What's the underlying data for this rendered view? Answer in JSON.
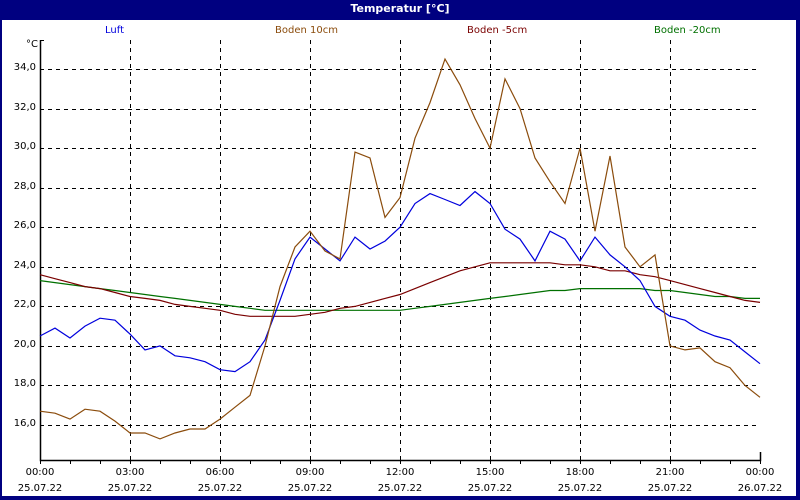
{
  "window": {
    "title": "Temperatur [°C]"
  },
  "colors": {
    "titlebar": "#000080",
    "luft": "#0000dd",
    "boden10": "#8b4c0c",
    "boden5": "#7a0000",
    "boden20": "#007000",
    "grid": "#000000"
  },
  "chart_data": {
    "type": "line",
    "title": "Temperatur [°C]",
    "ylabel": "°C",
    "xlabel": "",
    "ylim": [
      14.3,
      35.5
    ],
    "yticks": [
      16,
      18,
      20,
      22,
      24,
      26,
      28,
      30,
      32,
      34
    ],
    "ytick_labels": [
      "16,0",
      "18,0",
      "20,0",
      "22,0",
      "24,0",
      "26,0",
      "28,0",
      "30,0",
      "32,0",
      "34,0"
    ],
    "xlim_hours": [
      0,
      24
    ],
    "xticks": [
      {
        "time": "00:00",
        "date": "25.07.22"
      },
      {
        "time": "03:00",
        "date": "25.07.22"
      },
      {
        "time": "06:00",
        "date": "25.07.22"
      },
      {
        "time": "09:00",
        "date": "25.07.22"
      },
      {
        "time": "12:00",
        "date": "25.07.22"
      },
      {
        "time": "15:00",
        "date": "25.07.22"
      },
      {
        "time": "18:00",
        "date": "25.07.22"
      },
      {
        "time": "21:00",
        "date": "25.07.22"
      },
      {
        "time": "00:00",
        "date": "26.07.22"
      }
    ],
    "grid": true,
    "legend_position": "top",
    "x_hours": [
      0,
      0.5,
      1,
      1.5,
      2,
      2.5,
      3,
      3.5,
      4,
      4.5,
      5,
      5.5,
      6,
      6.5,
      7,
      7.5,
      8,
      8.5,
      9,
      9.5,
      10,
      10.5,
      11,
      11.5,
      12,
      12.5,
      13,
      13.5,
      14,
      14.5,
      15,
      15.5,
      16,
      16.5,
      17,
      17.5,
      18,
      18.5,
      19,
      19.5,
      20,
      20.5,
      21,
      21.5,
      22,
      22.5,
      23,
      23.5,
      24
    ],
    "series": [
      {
        "name": "Luft",
        "color": "#0000dd",
        "values": [
          20.5,
          20.9,
          20.4,
          21.0,
          21.4,
          21.3,
          20.6,
          19.8,
          20.0,
          19.5,
          19.4,
          19.2,
          18.8,
          18.7,
          19.2,
          20.3,
          22.3,
          24.4,
          25.5,
          24.9,
          24.3,
          25.5,
          24.9,
          25.3,
          26.0,
          27.2,
          27.7,
          27.4,
          27.1,
          27.8,
          27.2,
          25.9,
          25.4,
          24.3,
          25.8,
          25.4,
          24.3,
          25.5,
          24.6,
          24.0,
          23.3,
          22.0,
          21.5,
          21.3,
          20.8,
          20.5,
          20.3,
          19.7,
          19.1
        ]
      },
      {
        "name": "Boden 10cm",
        "color": "#8b4c0c",
        "values": [
          16.7,
          16.6,
          16.3,
          16.8,
          16.7,
          16.2,
          15.6,
          15.6,
          15.3,
          15.6,
          15.8,
          15.8,
          16.3,
          16.9,
          17.5,
          20.0,
          23.0,
          25.0,
          25.8,
          24.8,
          24.4,
          29.8,
          29.5,
          26.5,
          27.5,
          30.5,
          32.3,
          34.5,
          33.2,
          31.5,
          30.0,
          33.5,
          32.0,
          29.5,
          28.3,
          27.2,
          30.0,
          25.8,
          29.6,
          25.0,
          24.0,
          24.6,
          20.0,
          19.8,
          19.9,
          19.2,
          18.9,
          18.0,
          17.4
        ]
      },
      {
        "name": "Boden -5cm",
        "color": "#7a0000",
        "values": [
          23.6,
          23.4,
          23.2,
          23.0,
          22.9,
          22.7,
          22.5,
          22.4,
          22.3,
          22.1,
          22.0,
          21.9,
          21.8,
          21.6,
          21.5,
          21.5,
          21.5,
          21.5,
          21.6,
          21.7,
          21.9,
          22.0,
          22.2,
          22.4,
          22.6,
          22.9,
          23.2,
          23.5,
          23.8,
          24.0,
          24.2,
          24.2,
          24.2,
          24.2,
          24.2,
          24.1,
          24.1,
          24.0,
          23.8,
          23.8,
          23.6,
          23.5,
          23.3,
          23.1,
          22.9,
          22.7,
          22.5,
          22.3,
          22.2
        ]
      },
      {
        "name": "Boden -20cm",
        "color": "#007000",
        "values": [
          23.3,
          23.2,
          23.1,
          23.0,
          22.9,
          22.8,
          22.7,
          22.6,
          22.5,
          22.4,
          22.3,
          22.2,
          22.1,
          22.0,
          21.9,
          21.8,
          21.8,
          21.8,
          21.8,
          21.8,
          21.8,
          21.8,
          21.8,
          21.8,
          21.8,
          21.9,
          22.0,
          22.1,
          22.2,
          22.3,
          22.4,
          22.5,
          22.6,
          22.7,
          22.8,
          22.8,
          22.9,
          22.9,
          22.9,
          22.9,
          22.9,
          22.8,
          22.8,
          22.7,
          22.6,
          22.5,
          22.5,
          22.4,
          22.4
        ]
      }
    ]
  }
}
